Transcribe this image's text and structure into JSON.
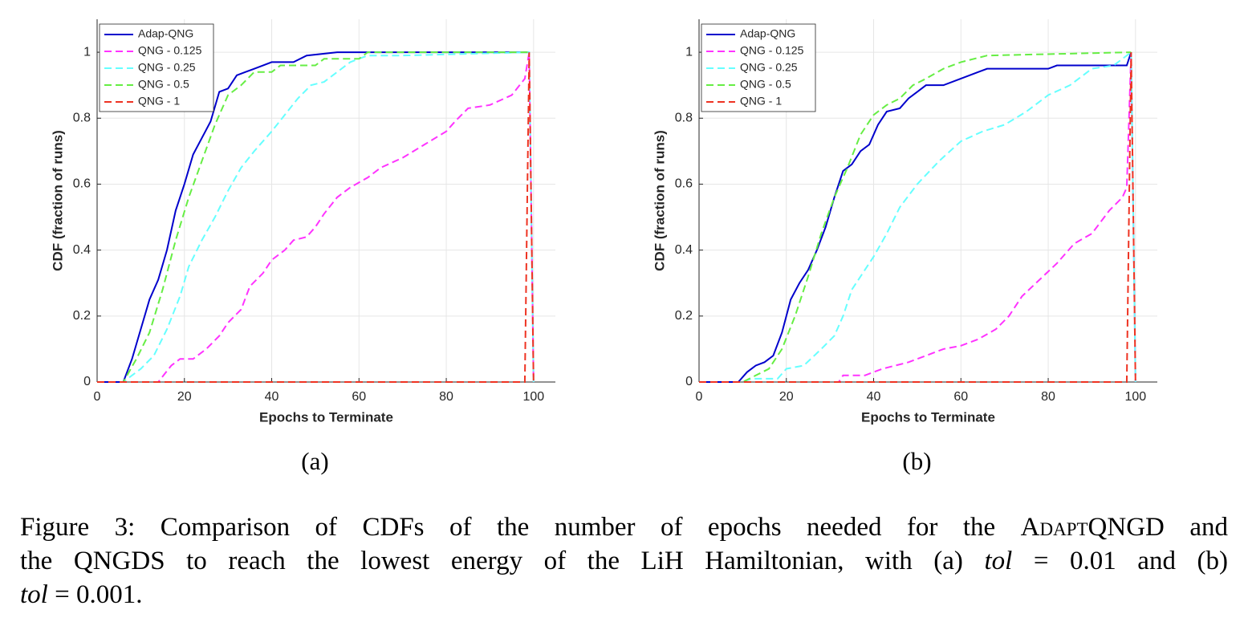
{
  "chart_data": [
    {
      "type": "line",
      "label": "(a)",
      "xlabel": "Epochs to Terminate",
      "ylabel": "CDF (fraction of runs)",
      "xlim": [
        0,
        105
      ],
      "ylim": [
        0,
        1.1
      ],
      "xticks": [
        0,
        20,
        40,
        60,
        80,
        100
      ],
      "yticks": [
        0,
        0.2,
        0.4,
        0.6,
        0.8,
        1
      ],
      "grid": true,
      "legend": "top-left",
      "series": [
        {
          "name": "Adap-QNG",
          "color": "#0000cc",
          "dash": "solid",
          "x": [
            0,
            6,
            8,
            10,
            12,
            14,
            16,
            18,
            20,
            22,
            24,
            26,
            28,
            30,
            32,
            34,
            36,
            38,
            40,
            45,
            48,
            55,
            99
          ],
          "values": [
            0,
            0,
            0.07,
            0.16,
            0.25,
            0.31,
            0.4,
            0.52,
            0.6,
            0.69,
            0.74,
            0.79,
            0.88,
            0.89,
            0.93,
            0.94,
            0.95,
            0.96,
            0.97,
            0.97,
            0.99,
            1,
            1
          ]
        },
        {
          "name": "QNG - 0.125",
          "color": "#ff33ff",
          "dash": "dashed",
          "x": [
            0,
            14,
            17,
            19,
            22,
            25,
            28,
            30,
            33,
            35,
            38,
            40,
            43,
            45,
            48,
            50,
            52,
            55,
            58,
            62,
            65,
            70,
            75,
            80,
            82,
            85,
            90,
            95,
            98,
            99,
            100
          ],
          "values": [
            0,
            0,
            0.05,
            0.07,
            0.07,
            0.1,
            0.14,
            0.18,
            0.22,
            0.29,
            0.33,
            0.37,
            0.4,
            0.43,
            0.44,
            0.47,
            0.51,
            0.56,
            0.59,
            0.62,
            0.65,
            0.68,
            0.72,
            0.76,
            0.79,
            0.83,
            0.84,
            0.87,
            0.92,
            1,
            0
          ]
        },
        {
          "name": "QNG - 0.25",
          "color": "#66ffff",
          "dash": "dashed",
          "x": [
            0,
            6,
            10,
            13,
            16,
            19,
            21,
            24,
            27,
            30,
            33,
            36,
            40,
            43,
            46,
            49,
            52,
            55,
            58,
            62,
            70,
            99,
            100
          ],
          "values": [
            0,
            0,
            0.04,
            0.08,
            0.16,
            0.26,
            0.35,
            0.43,
            0.5,
            0.58,
            0.65,
            0.7,
            0.76,
            0.81,
            0.86,
            0.9,
            0.91,
            0.94,
            0.97,
            0.99,
            0.99,
            1,
            0
          ]
        },
        {
          "name": "QNG - 0.5",
          "color": "#66ee44",
          "dash": "dashed",
          "x": [
            0,
            6,
            9,
            12,
            15,
            18,
            21,
            24,
            27,
            30,
            33,
            36,
            40,
            42,
            50,
            52,
            60,
            62,
            99
          ],
          "values": [
            0,
            0,
            0.07,
            0.15,
            0.28,
            0.43,
            0.56,
            0.67,
            0.78,
            0.87,
            0.9,
            0.94,
            0.94,
            0.96,
            0.96,
            0.98,
            0.98,
            1,
            1
          ]
        },
        {
          "name": "QNG - 1",
          "color": "#ee3322",
          "dash": "dashed",
          "x": [
            0,
            98,
            99,
            100
          ],
          "values": [
            0,
            0,
            1,
            0
          ]
        }
      ]
    },
    {
      "type": "line",
      "label": "(b)",
      "xlabel": "Epochs to Terminate",
      "ylabel": "CDF (fraction of runs)",
      "xlim": [
        0,
        105
      ],
      "ylim": [
        0,
        1.1
      ],
      "xticks": [
        0,
        20,
        40,
        60,
        80,
        100
      ],
      "yticks": [
        0,
        0.2,
        0.4,
        0.6,
        0.8,
        1
      ],
      "grid": true,
      "legend": "top-left",
      "series": [
        {
          "name": "Adap-QNG",
          "color": "#0000cc",
          "dash": "solid",
          "x": [
            0,
            9,
            11,
            13,
            15,
            17,
            19,
            21,
            23,
            25,
            27,
            29,
            31,
            33,
            35,
            37,
            39,
            41,
            43,
            46,
            48,
            50,
            52,
            56,
            60,
            64,
            66,
            80,
            82,
            98,
            99
          ],
          "values": [
            0,
            0,
            0.03,
            0.05,
            0.06,
            0.08,
            0.15,
            0.25,
            0.3,
            0.34,
            0.4,
            0.47,
            0.56,
            0.64,
            0.66,
            0.7,
            0.72,
            0.78,
            0.82,
            0.83,
            0.86,
            0.88,
            0.9,
            0.9,
            0.92,
            0.94,
            0.95,
            0.95,
            0.96,
            0.96,
            1
          ]
        },
        {
          "name": "QNG - 0.125",
          "color": "#ff33ff",
          "dash": "dashed",
          "x": [
            0,
            32,
            33,
            38,
            42,
            48,
            52,
            56,
            60,
            64,
            68,
            71,
            74,
            78,
            82,
            86,
            90,
            94,
            97,
            98,
            99,
            100
          ],
          "values": [
            0,
            0,
            0.02,
            0.02,
            0.04,
            0.06,
            0.08,
            0.1,
            0.11,
            0.13,
            0.16,
            0.2,
            0.26,
            0.31,
            0.36,
            0.42,
            0.45,
            0.52,
            0.56,
            0.59,
            1,
            0
          ]
        },
        {
          "name": "QNG - 0.25",
          "color": "#66ffff",
          "dash": "dashed",
          "x": [
            0,
            10,
            12,
            18,
            20,
            24,
            28,
            31,
            33,
            35,
            37,
            40,
            43,
            46,
            50,
            55,
            60,
            65,
            70,
            75,
            80,
            85,
            90,
            95,
            99,
            100
          ],
          "values": [
            0,
            0,
            0.01,
            0.01,
            0.04,
            0.05,
            0.1,
            0.14,
            0.2,
            0.28,
            0.32,
            0.38,
            0.45,
            0.53,
            0.6,
            0.67,
            0.73,
            0.76,
            0.78,
            0.82,
            0.87,
            0.9,
            0.95,
            0.96,
            1,
            0
          ]
        },
        {
          "name": "QNG - 0.5",
          "color": "#66ee44",
          "dash": "dashed",
          "x": [
            0,
            10,
            13,
            16,
            19,
            22,
            25,
            28,
            31,
            34,
            37,
            40,
            43,
            46,
            49,
            52,
            56,
            60,
            66,
            99
          ],
          "values": [
            0,
            0,
            0.02,
            0.04,
            0.1,
            0.2,
            0.32,
            0.45,
            0.56,
            0.65,
            0.75,
            0.81,
            0.84,
            0.86,
            0.9,
            0.92,
            0.95,
            0.97,
            0.99,
            1
          ]
        },
        {
          "name": "QNG - 1",
          "color": "#ee3322",
          "dash": "dashed",
          "x": [
            0,
            98,
            99,
            100
          ],
          "values": [
            0,
            0,
            1,
            0
          ]
        }
      ]
    }
  ],
  "caption": [
    "Figure 3: Comparison of CDFs of the number of epochs needed for the ",
    "AdaptQNGD",
    " and",
    "the QNGDS to reach the lowest energy of the LiH Hamiltonian, with (a) ",
    "tol",
    " = 0.01 and (b)",
    "tol",
    " = 0.001."
  ]
}
